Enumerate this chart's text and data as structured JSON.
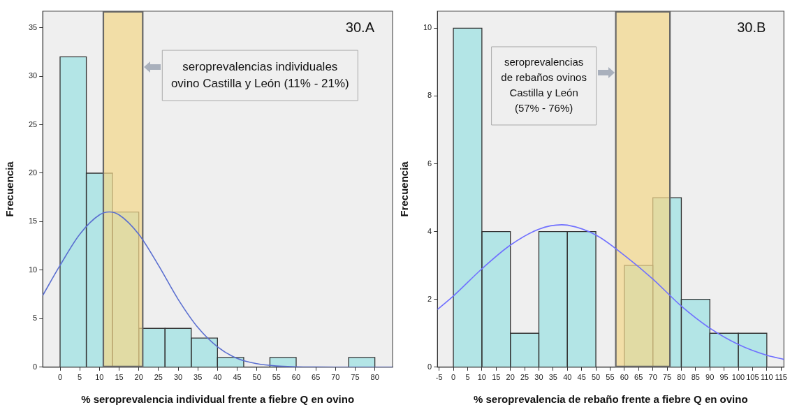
{
  "chart_data": [
    {
      "type": "histogram",
      "xlabel": "% seroprevalencia individual frente a fiebre Q en ovino",
      "ylabel": "Frecuencia",
      "annotations": [
        "30.A"
      ],
      "marker": "none",
      "bins": [
        0,
        6.67,
        13.33,
        20,
        26.67,
        33.33,
        40,
        46.67,
        53.33,
        60,
        66.67,
        73.33,
        80
      ],
      "series": [
        {
          "type": "histogram",
          "color": "#b3e5e6",
          "values": [
            32,
            20,
            16,
            4,
            4,
            3,
            1,
            0,
            1,
            0,
            0,
            1
          ]
        },
        {
          "type": "line",
          "color": "#5b6fd0",
          "x": [
            -4.4,
            0,
            5,
            10,
            12.5,
            15,
            20,
            25,
            30,
            35,
            40,
            45,
            50,
            55,
            60,
            65,
            70,
            75,
            80,
            84.5
          ],
          "values": [
            7.4,
            10.5,
            13.7,
            15.7,
            16,
            15.7,
            13.7,
            10.5,
            7.0,
            4.1,
            2.1,
            0.9,
            0.36,
            0.12,
            0.04,
            0.01,
            0,
            0,
            0,
            0
          ]
        }
      ],
      "bands": [
        {
          "axis": "x",
          "from": 11,
          "to": 21,
          "label": "seroprevalencias individuales ovino Castilla y León (11% - 21%)",
          "color": "#f2d78a"
        }
      ],
      "xlim": [
        -4.4,
        84.5
      ],
      "xticks": [
        0,
        5,
        10,
        15,
        20,
        25,
        30,
        35,
        40,
        45,
        50,
        55,
        60,
        65,
        70,
        75,
        80
      ],
      "ylim": [
        0,
        36.7
      ],
      "yticks": [
        0,
        5,
        10,
        15,
        20,
        25,
        30,
        35
      ]
    },
    {
      "type": "histogram",
      "xlabel": "% seroprevalencia de rebaño frente a fiebre Q en ovino",
      "ylabel": "Frecuencia",
      "annotations": [
        "30.B"
      ],
      "marker": "none",
      "bins": [
        0,
        10,
        20,
        30,
        40,
        50,
        60,
        70,
        80,
        90,
        100,
        110
      ],
      "series": [
        {
          "type": "histogram",
          "color": "#b3e5e6",
          "values": [
            10,
            4,
            1,
            4,
            4,
            0,
            3,
            5,
            2,
            1,
            1
          ]
        },
        {
          "type": "line",
          "color": "#7070ff",
          "x": [
            -5.6,
            0,
            10,
            20,
            30,
            38,
            40,
            50,
            60,
            70,
            80,
            90,
            100,
            110,
            116
          ],
          "values": [
            1.7,
            2.1,
            2.9,
            3.6,
            4.07,
            4.2,
            4.19,
            3.9,
            3.3,
            2.6,
            1.8,
            1.15,
            0.67,
            0.35,
            0.23
          ]
        }
      ],
      "bands": [
        {
          "axis": "x",
          "from": 57,
          "to": 76,
          "label": "seroprevalencias de rebaños ovinos Castilla y León (57% - 76%)",
          "color": "#f2d78a"
        }
      ],
      "xlim": [
        -5.6,
        116
      ],
      "xticks": [
        -5,
        0,
        5,
        10,
        15,
        20,
        25,
        30,
        35,
        40,
        45,
        50,
        55,
        60,
        65,
        70,
        75,
        80,
        85,
        90,
        95,
        100,
        105,
        110,
        115
      ],
      "ylim": [
        0,
        10.5
      ],
      "yticks": [
        0,
        2,
        4,
        6,
        8,
        10
      ]
    }
  ]
}
